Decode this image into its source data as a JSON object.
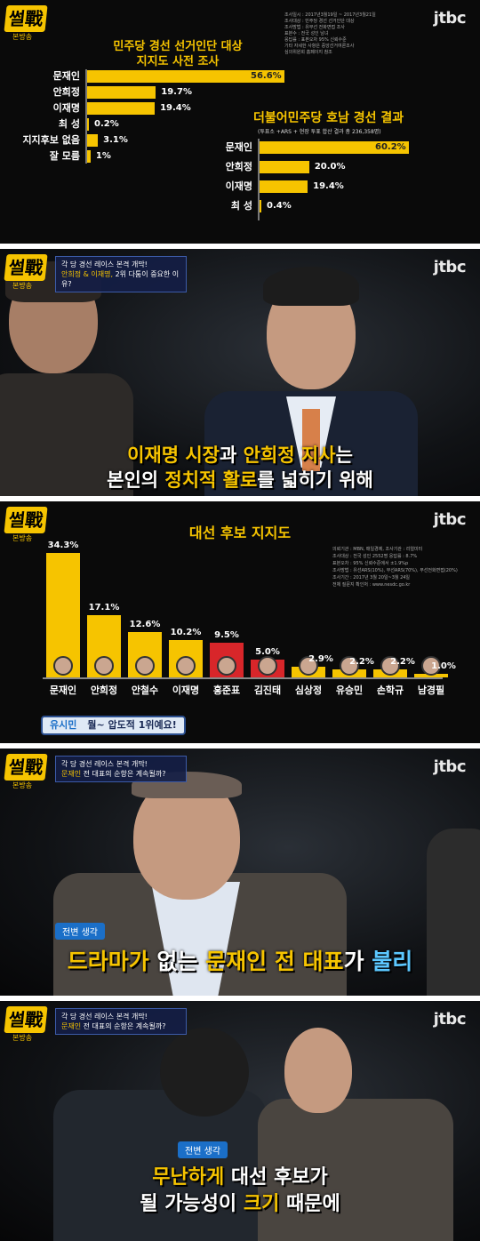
{
  "brand": {
    "logo": "썰戰",
    "logo_sub": "본방송",
    "channel": "jtbc"
  },
  "panel1": {
    "title_line1": "민주당 경선 선거인단 대상",
    "title_line2": "지지도 사전 조사",
    "notes": [
      "조사일시 : 2017년3월19일 ~ 2017년3월21일",
      "조사대상 : 민주당 경선 선거인단 대상",
      "조사방법 : 유무선 전화면접 조사",
      "표본수 : 전국 성인 남녀",
      "응답률 : 표본오차 95% 신뢰수준",
      "기타 자세한 사항은 중앙선거여론조사",
      "심의위원회 홈페이지 참조"
    ],
    "rows": [
      {
        "name": "문재인",
        "value": 56.6,
        "label": "56.6%"
      },
      {
        "name": "안희정",
        "value": 19.7,
        "label": "19.7%"
      },
      {
        "name": "이재명",
        "value": 19.4,
        "label": "19.4%"
      },
      {
        "name": "최 성",
        "value": 0.2,
        "label": "0.2%"
      },
      {
        "name": "지지후보 없음",
        "value": 3.1,
        "label": "3.1%"
      },
      {
        "name": "잘 모름",
        "value": 1.0,
        "label": "1%"
      }
    ],
    "chart2_title": "더불어민주당 호남 경선 결과",
    "chart2_sub": "(투표소 +ARS + 현장 투표 합산 결과 총 236,358명)",
    "chart2_rows": [
      {
        "name": "문재인",
        "value": 60.2,
        "label": "60.2%"
      },
      {
        "name": "안희정",
        "value": 20.0,
        "label": "20.0%"
      },
      {
        "name": "이재명",
        "value": 19.4,
        "label": "19.4%"
      },
      {
        "name": "최  성",
        "value": 0.4,
        "label": "0.4%"
      }
    ]
  },
  "panel2": {
    "tag_line1": "각 당 경선 레이스 본격 개막!",
    "tag_line2_hl": "안희정 & 이재명,",
    "tag_line2_rest": " 2위 다툼이 중요한 이유?",
    "sub1_a": "이재명 시장",
    "sub1_b": "과 ",
    "sub1_c": "안희정 지사",
    "sub1_d": "는",
    "sub2_a": "본인의 ",
    "sub2_b": "정치적 활로",
    "sub2_c": "를 넓히기 위해"
  },
  "panel3": {
    "title": "대선 후보 지지도",
    "notes": [
      "의뢰기관 : MBN, 매일경제, 조사기관 : 리얼미터",
      "조사대상 : 전국 성인 2552명 응답률 : 8.7%",
      "표본오차 : 95% 신뢰수준에서 ±1.9%p",
      "조사방법 : 유선ARS(10%), 무선ARS(70%), 무선전화면접(20%)",
      "조사기간 : 2017년 3월 20일~3월 24일",
      "전체 질문지 확인처 : www.nesdc.go.kr"
    ],
    "bars": [
      {
        "name": "문재인",
        "value": 34.3,
        "label": "34.3%",
        "color": "#f6c400"
      },
      {
        "name": "안희정",
        "value": 17.1,
        "label": "17.1%",
        "color": "#f6c400"
      },
      {
        "name": "안철수",
        "value": 12.6,
        "label": "12.6%",
        "color": "#f6c400"
      },
      {
        "name": "이재명",
        "value": 10.2,
        "label": "10.2%",
        "color": "#f6c400"
      },
      {
        "name": "홍준표",
        "value": 9.5,
        "label": "9.5%",
        "color": "#d8262a"
      },
      {
        "name": "김진태",
        "value": 5.0,
        "label": "5.0%",
        "color": "#d8262a"
      },
      {
        "name": "심상정",
        "value": 2.9,
        "label": "2.9%",
        "color": "#f6c400"
      },
      {
        "name": "유승민",
        "value": 2.2,
        "label": "2.2%",
        "color": "#f6c400"
      },
      {
        "name": "손학규",
        "value": 2.2,
        "label": "2.2%",
        "color": "#f6c400"
      },
      {
        "name": "남경필",
        "value": 1.0,
        "label": "1.0%",
        "color": "#f6c400"
      }
    ],
    "bubble_name": "유시민",
    "bubble_text": "뭘~ 압도적 1위예요!"
  },
  "panel4": {
    "tag_line1": "각 당 경선 레이스 본격 개막!",
    "tag_line2_hl": "문재인",
    "tag_line2_rest": " 전 대표의 순항은 계속될까?",
    "speaker": "전변 생각",
    "sub_a": "드라마가",
    "sub_b": " 없는 ",
    "sub_c": "문재인 전 대표",
    "sub_d": "가 ",
    "sub_e": "불리"
  },
  "panel5": {
    "tag_line1": "각 당 경선 레이스 본격 개막!",
    "tag_line2_hl": "문재인",
    "tag_line2_rest": " 전 대표의 순항은 계속될까?",
    "speaker": "전변 생각",
    "sub1_a": "무난하게",
    "sub1_b": " 대선 후보가",
    "sub2_a": "될 가능성이 ",
    "sub2_b": "크기",
    "sub2_c": " 때문에"
  }
}
